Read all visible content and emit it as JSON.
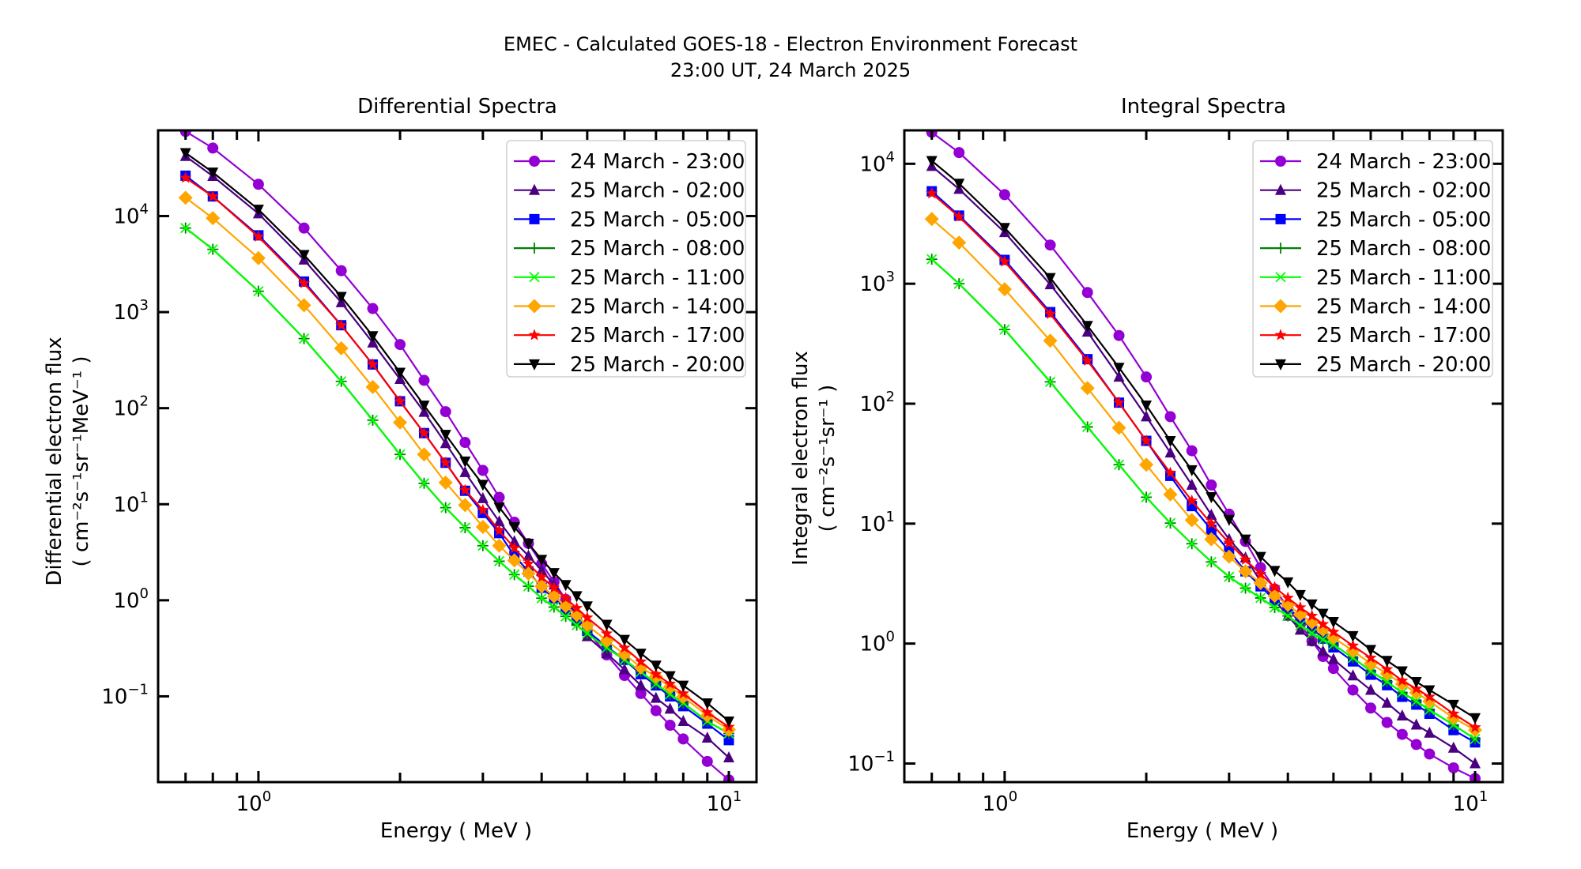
{
  "figure": {
    "title_line1": "EMEC - Calculated GOES-18 - Electron Environment Forecast",
    "title_line2": "23:00 UT, 24 March 2025"
  },
  "chart_data": [
    {
      "type": "line",
      "id": "differential",
      "title": "Differential Spectra",
      "xlabel": "Energy ( MeV )",
      "ylabel_line1": "Differential electron flux",
      "ylabel_line2": "( cm⁻²s⁻¹sr⁻¹MeV⁻¹ )",
      "xscale": "log",
      "yscale": "log",
      "xlim": [
        0.612,
        11.45
      ],
      "ylim": [
        0.0128,
        78000
      ],
      "xticks": [
        {
          "value": 1,
          "label": "10",
          "exp": "0"
        },
        {
          "value": 10,
          "label": "10",
          "exp": "1"
        }
      ],
      "yticks": [
        {
          "value": 0.1,
          "label": "10",
          "exp": "−1"
        },
        {
          "value": 1,
          "label": "10",
          "exp": "0"
        },
        {
          "value": 10,
          "label": "10",
          "exp": "1"
        },
        {
          "value": 100,
          "label": "10",
          "exp": "2"
        },
        {
          "value": 1000,
          "label": "10",
          "exp": "3"
        },
        {
          "value": 10000,
          "label": "10",
          "exp": "4"
        }
      ],
      "grid": false,
      "legend_position": "top-right",
      "x": [
        0.7,
        0.8,
        1.0,
        1.25,
        1.5,
        1.75,
        2.0,
        2.25,
        2.5,
        2.75,
        3.0,
        3.25,
        3.5,
        3.75,
        4.0,
        4.25,
        4.5,
        4.75,
        5.0,
        5.5,
        6.0,
        6.5,
        7.0,
        7.5,
        8.0,
        9.0,
        10.0
      ],
      "series": [
        {
          "name": "24 March - 23:00",
          "color": "#9400d3",
          "marker": "circle",
          "values": [
            76000,
            51000,
            21400,
            7500,
            2700,
            1090,
            460,
            195,
            92,
            44,
            22.5,
            11.8,
            6.5,
            3.9,
            2.4,
            1.55,
            1.02,
            0.68,
            0.49,
            0.27,
            0.165,
            0.107,
            0.071,
            0.05,
            0.036,
            0.021,
            0.0135
          ]
        },
        {
          "name": "25 March - 02:00",
          "color": "#4b0082",
          "marker": "triangle-up",
          "values": [
            42000,
            26000,
            10600,
            3500,
            1260,
            480,
            200,
            91,
            43,
            21.5,
            11.5,
            6.6,
            4.1,
            2.9,
            2.05,
            1.45,
            1.0,
            0.72,
            0.42,
            0.28,
            0.19,
            0.13,
            0.096,
            0.074,
            0.055,
            0.037,
            0.023
          ]
        },
        {
          "name": "25 March - 05:00",
          "color": "#0000ff",
          "marker": "square",
          "values": [
            26300,
            16000,
            6300,
            2080,
            730,
            285,
            118,
            55,
            27,
            13.8,
            8.1,
            5.0,
            2.9,
            2.0,
            1.35,
            1.05,
            0.8,
            0.62,
            0.48,
            0.33,
            0.24,
            0.17,
            0.13,
            0.1,
            0.079,
            0.052,
            0.035
          ]
        },
        {
          "name": "25 March - 08:00",
          "color": "#008000",
          "marker": "plus",
          "values": [
            7500,
            4500,
            1650,
            530,
            190,
            75,
            33,
            16.5,
            9.2,
            5.7,
            3.7,
            2.55,
            1.85,
            1.4,
            1.05,
            0.85,
            0.68,
            0.55,
            0.45,
            0.32,
            0.24,
            0.18,
            0.135,
            0.105,
            0.085,
            0.055,
            0.041
          ]
        },
        {
          "name": "25 March - 11:00",
          "color": "#00ff00",
          "marker": "x",
          "values": [
            7500,
            4500,
            1650,
            530,
            190,
            75,
            33,
            16.5,
            9.2,
            5.7,
            3.7,
            2.55,
            1.85,
            1.4,
            1.05,
            0.85,
            0.68,
            0.55,
            0.45,
            0.32,
            0.24,
            0.18,
            0.135,
            0.105,
            0.085,
            0.055,
            0.041
          ]
        },
        {
          "name": "25 March - 14:00",
          "color": "#ffa500",
          "marker": "diamond",
          "values": [
            15500,
            9500,
            3650,
            1180,
            420,
            166,
            71,
            33,
            16.8,
            9.8,
            5.8,
            3.7,
            2.6,
            1.9,
            1.4,
            1.1,
            0.87,
            0.7,
            0.55,
            0.38,
            0.275,
            0.2,
            0.16,
            0.125,
            0.099,
            0.063,
            0.045
          ]
        },
        {
          "name": "25 March - 17:00",
          "color": "#ff0000",
          "marker": "star",
          "values": [
            25000,
            16000,
            6100,
            2000,
            728,
            285,
            118,
            55,
            27,
            14,
            8.7,
            5.3,
            3.5,
            2.4,
            1.74,
            1.35,
            1.05,
            0.83,
            0.66,
            0.45,
            0.32,
            0.23,
            0.17,
            0.135,
            0.107,
            0.068,
            0.048
          ]
        },
        {
          "name": "25 March - 20:00",
          "color": "#000000",
          "marker": "triangle-down",
          "values": [
            45500,
            28500,
            11700,
            3950,
            1450,
            565,
            235,
            107,
            53,
            28,
            16,
            9.3,
            5.8,
            3.9,
            2.65,
            1.93,
            1.45,
            1.11,
            0.87,
            0.56,
            0.39,
            0.28,
            0.21,
            0.163,
            0.13,
            0.085,
            0.055
          ]
        }
      ]
    },
    {
      "type": "line",
      "id": "integral",
      "title": "Integral Spectra",
      "xlabel": "Energy ( MeV )",
      "ylabel_line1": "Integral electron flux",
      "ylabel_line2": "( cm⁻²s⁻¹sr⁻¹ )",
      "xscale": "log",
      "yscale": "log",
      "xlim": [
        0.612,
        11.45
      ],
      "ylim": [
        0.07,
        19000
      ],
      "xticks": [
        {
          "value": 1,
          "label": "10",
          "exp": "0"
        },
        {
          "value": 10,
          "label": "10",
          "exp": "1"
        }
      ],
      "yticks": [
        {
          "value": 0.1,
          "label": "10",
          "exp": "−1"
        },
        {
          "value": 1,
          "label": "10",
          "exp": "0"
        },
        {
          "value": 10,
          "label": "10",
          "exp": "1"
        },
        {
          "value": 100,
          "label": "10",
          "exp": "2"
        },
        {
          "value": 1000,
          "label": "10",
          "exp": "3"
        },
        {
          "value": 10000,
          "label": "10",
          "exp": "4"
        }
      ],
      "grid": false,
      "legend_position": "top-right",
      "x": [
        0.7,
        0.8,
        1.0,
        1.25,
        1.5,
        1.75,
        2.0,
        2.25,
        2.5,
        2.75,
        3.0,
        3.25,
        3.5,
        3.75,
        4.0,
        4.25,
        4.5,
        4.75,
        5.0,
        5.5,
        6.0,
        6.5,
        7.0,
        7.5,
        8.0,
        9.0,
        10.0
      ],
      "series": [
        {
          "name": "24 March - 23:00",
          "color": "#9400d3",
          "marker": "circle",
          "values": [
            18300,
            12400,
            5530,
            2100,
            845,
            370,
            167,
            78,
            40.5,
            21,
            12,
            7.1,
            4.3,
            2.85,
            2.0,
            1.45,
            1.05,
            0.78,
            0.62,
            0.41,
            0.29,
            0.22,
            0.175,
            0.144,
            0.12,
            0.092,
            0.075
          ]
        },
        {
          "name": "25 March - 02:00",
          "color": "#4b0082",
          "marker": "triangle-up",
          "values": [
            9550,
            6150,
            2680,
            985,
            397,
            167,
            78,
            39,
            21,
            11.8,
            7.4,
            5.2,
            3.3,
            2.3,
            1.7,
            1.3,
            1.05,
            0.86,
            0.74,
            0.54,
            0.41,
            0.32,
            0.25,
            0.21,
            0.18,
            0.135,
            0.1
          ]
        },
        {
          "name": "25 March - 05:00",
          "color": "#0000ff",
          "marker": "square",
          "values": [
            5900,
            3700,
            1580,
            580,
            235,
            102,
            49,
            25,
            14,
            8.9,
            5.9,
            4.0,
            3.0,
            2.3,
            2.0,
            1.6,
            1.35,
            1.1,
            0.93,
            0.71,
            0.55,
            0.45,
            0.36,
            0.31,
            0.26,
            0.19,
            0.15
          ]
        },
        {
          "name": "25 March - 08:00",
          "color": "#008000",
          "marker": "plus",
          "values": [
            1600,
            1000,
            415,
            152,
            64,
            31,
            16.6,
            10.1,
            6.8,
            4.8,
            3.6,
            2.9,
            2.4,
            2.0,
            1.7,
            1.42,
            1.22,
            1.08,
            0.98,
            0.76,
            0.59,
            0.48,
            0.39,
            0.33,
            0.28,
            0.21,
            0.16
          ]
        },
        {
          "name": "25 March - 11:00",
          "color": "#00ff00",
          "marker": "x",
          "values": [
            1600,
            1000,
            415,
            152,
            64,
            31,
            16.6,
            10.1,
            6.8,
            4.8,
            3.6,
            2.9,
            2.4,
            2.0,
            1.7,
            1.42,
            1.22,
            1.08,
            0.98,
            0.76,
            0.59,
            0.48,
            0.39,
            0.33,
            0.28,
            0.21,
            0.16
          ]
        },
        {
          "name": "25 March - 14:00",
          "color": "#ffa500",
          "marker": "diamond",
          "values": [
            3460,
            2200,
            900,
            335,
            135,
            63,
            31,
            17.5,
            10.7,
            7.4,
            5.3,
            4.0,
            3.2,
            2.5,
            2.1,
            1.75,
            1.5,
            1.3,
            1.12,
            0.87,
            0.68,
            0.56,
            0.46,
            0.39,
            0.33,
            0.24,
            0.19
          ]
        },
        {
          "name": "25 March - 17:00",
          "color": "#ff0000",
          "marker": "star",
          "values": [
            5660,
            3620,
            1530,
            560,
            228,
            102,
            49,
            26.5,
            15.5,
            10,
            6.9,
            5.0,
            3.8,
            2.95,
            2.4,
            2.0,
            1.7,
            1.45,
            1.25,
            0.96,
            0.76,
            0.61,
            0.49,
            0.42,
            0.36,
            0.26,
            0.2
          ]
        },
        {
          "name": "25 March - 20:00",
          "color": "#000000",
          "marker": "triangle-down",
          "values": [
            10600,
            6850,
            2930,
            1120,
            447,
            200,
            97,
            49,
            28,
            16.7,
            10.8,
            7.4,
            5.3,
            4.05,
            3.25,
            2.55,
            2.13,
            1.78,
            1.52,
            1.16,
            0.89,
            0.72,
            0.59,
            0.48,
            0.41,
            0.31,
            0.24
          ]
        }
      ]
    }
  ]
}
